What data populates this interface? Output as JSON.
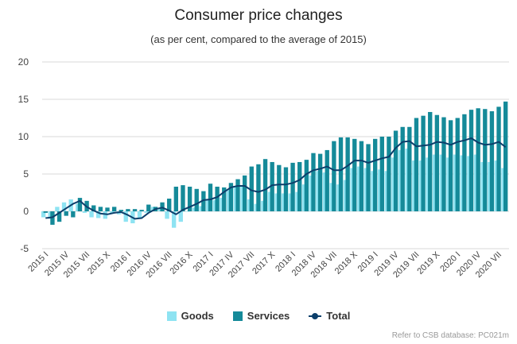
{
  "title": "Consumer price changes",
  "subtitle": "(as per cent, compared to the average of 2015)",
  "credits": "Refer to CSB database: PC021m",
  "colors": {
    "goods": "#8ee3f2",
    "services": "#158a99",
    "total": "#0c3f6b",
    "grid": "#d9d9d9"
  },
  "legend": [
    {
      "label": "Goods",
      "color": "#8ee3f2",
      "kind": "bar"
    },
    {
      "label": "Services",
      "color": "#158a99",
      "kind": "bar"
    },
    {
      "label": "Total",
      "color": "#0c3f6b",
      "kind": "line"
    }
  ],
  "chart_data": {
    "type": "bar",
    "title": "Consumer price changes",
    "subtitle": "(as per cent, compared to the average of 2015)",
    "ylim": [
      -5,
      20
    ],
    "yticks": [
      -5,
      0,
      5,
      10,
      15,
      20
    ],
    "grid": true,
    "legend_position": "bottom",
    "x_tick_labels": [
      "2015 I",
      "2015 IV",
      "2015 VII",
      "2015 X",
      "2016 I",
      "2016 IV",
      "2016 VII",
      "2016 X",
      "2017 I",
      "2017 IV",
      "2017 VII",
      "2017 X",
      "2018 I",
      "2018 IV",
      "2018 VII",
      "2018 X",
      "2019 I",
      "2019 IV",
      "2019 VII",
      "2019 X",
      "2020 I",
      "2020 IV",
      "2020 VII"
    ],
    "x_tick_step": 3,
    "categories": [
      "2015 I",
      "2015 II",
      "2015 III",
      "2015 IV",
      "2015 V",
      "2015 VI",
      "2015 VII",
      "2015 VIII",
      "2015 IX",
      "2015 X",
      "2015 XI",
      "2015 XII",
      "2016 I",
      "2016 II",
      "2016 III",
      "2016 IV",
      "2016 V",
      "2016 VI",
      "2016 VII",
      "2016 VIII",
      "2016 IX",
      "2016 X",
      "2016 XI",
      "2016 XII",
      "2017 I",
      "2017 II",
      "2017 III",
      "2017 IV",
      "2017 V",
      "2017 VI",
      "2017 VII",
      "2017 VIII",
      "2017 IX",
      "2017 X",
      "2017 XI",
      "2017 XII",
      "2018 I",
      "2018 II",
      "2018 III",
      "2018 IV",
      "2018 V",
      "2018 VI",
      "2018 VII",
      "2018 VIII",
      "2018 IX",
      "2018 X",
      "2018 XI",
      "2018 XII",
      "2019 I",
      "2019 II",
      "2019 III",
      "2019 IV",
      "2019 V",
      "2019 VI",
      "2019 VII",
      "2019 VIII",
      "2019 IX",
      "2019 X",
      "2019 XI",
      "2019 XII",
      "2020 I",
      "2020 II",
      "2020 III",
      "2020 IV",
      "2020 V",
      "2020 VI",
      "2020 VII",
      "2020 VIII"
    ],
    "series": [
      {
        "name": "Goods",
        "type": "bar",
        "values": [
          -0.8,
          -1.0,
          0.6,
          1.2,
          1.6,
          1.0,
          -0.2,
          -0.8,
          -0.9,
          -1.0,
          -0.2,
          -0.4,
          -1.4,
          -1.6,
          -1.0,
          -0.2,
          0.6,
          0.3,
          -1.0,
          -2.2,
          -1.4,
          0.0,
          0.5,
          0.7,
          1.6,
          1.5,
          1.8,
          2.8,
          3.4,
          3.4,
          1.6,
          1.0,
          1.4,
          2.6,
          2.4,
          2.4,
          2.4,
          2.6,
          3.6,
          4.8,
          5.4,
          5.2,
          3.8,
          3.6,
          4.2,
          5.8,
          6.0,
          5.8,
          5.4,
          5.6,
          5.4,
          7.2,
          8.2,
          8.4,
          6.8,
          6.8,
          7.2,
          7.6,
          7.6,
          7.2,
          7.6,
          7.5,
          7.4,
          7.6,
          6.6,
          6.6,
          6.8,
          5.8
        ]
      },
      {
        "name": "Services",
        "type": "bar",
        "values": [
          -0.2,
          -1.8,
          -1.4,
          -0.6,
          -0.8,
          1.8,
          1.4,
          0.8,
          0.6,
          0.5,
          0.6,
          0.2,
          0.3,
          0.3,
          0.2,
          0.9,
          0.6,
          1.2,
          1.7,
          3.3,
          3.5,
          3.3,
          3.0,
          2.7,
          3.7,
          3.3,
          3.2,
          3.8,
          4.3,
          4.8,
          6.0,
          6.3,
          7.0,
          6.6,
          6.2,
          5.9,
          6.5,
          6.6,
          6.9,
          7.8,
          7.7,
          8.2,
          9.4,
          9.9,
          9.9,
          9.7,
          9.4,
          9.0,
          9.7,
          10.0,
          10.0,
          10.8,
          11.3,
          11.3,
          12.5,
          12.8,
          13.3,
          12.9,
          12.6,
          12.2,
          12.5,
          13.0,
          13.6,
          13.8,
          13.7,
          13.4,
          14.0,
          14.7
        ]
      },
      {
        "name": "Total",
        "type": "line",
        "values": [
          -0.9,
          -0.8,
          -0.2,
          0.4,
          1.0,
          1.4,
          0.6,
          0.1,
          -0.3,
          -0.4,
          -0.2,
          -0.1,
          -0.5,
          -1.0,
          -0.9,
          -0.2,
          0.3,
          0.5,
          0.1,
          -0.4,
          0.2,
          0.6,
          1.0,
          1.5,
          1.6,
          1.9,
          2.6,
          3.2,
          3.4,
          3.4,
          2.8,
          2.6,
          2.9,
          3.5,
          3.6,
          3.6,
          3.8,
          4.2,
          5.0,
          5.5,
          5.7,
          6.0,
          5.5,
          5.5,
          6.1,
          6.8,
          6.8,
          6.5,
          6.8,
          7.1,
          7.3,
          8.5,
          9.3,
          9.4,
          8.7,
          8.8,
          8.9,
          9.3,
          9.2,
          8.9,
          9.3,
          9.5,
          9.8,
          9.2,
          8.9,
          9.0,
          9.3,
          8.6
        ]
      }
    ]
  }
}
